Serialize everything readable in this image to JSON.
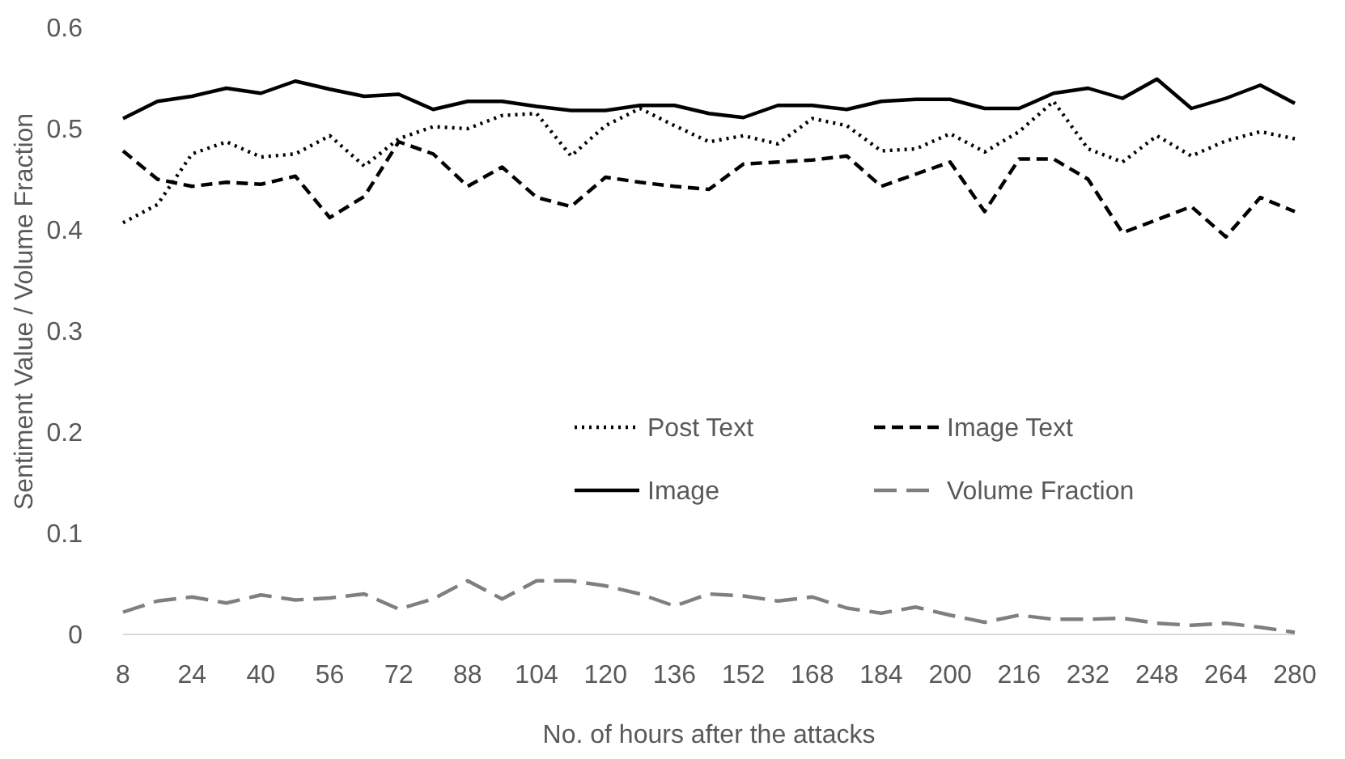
{
  "chart_data": {
    "type": "line",
    "xlabel": "No. of hours after the attacks",
    "ylabel": "Sentiment Value / Volume Fraction",
    "x": [
      8,
      16,
      24,
      32,
      40,
      48,
      56,
      64,
      72,
      80,
      88,
      96,
      104,
      112,
      120,
      128,
      136,
      144,
      152,
      160,
      168,
      176,
      184,
      192,
      200,
      208,
      216,
      224,
      232,
      240,
      248,
      256,
      264,
      272,
      280
    ],
    "xlim": [
      8,
      280
    ],
    "xticks": [
      8,
      24,
      40,
      56,
      72,
      88,
      104,
      120,
      136,
      152,
      168,
      184,
      200,
      216,
      232,
      248,
      264,
      280
    ],
    "ylim": [
      0,
      0.6
    ],
    "yticks": [
      {
        "value": 0,
        "label": "0"
      },
      {
        "value": 0.1,
        "label": "0.1"
      },
      {
        "value": 0.2,
        "label": "0.2"
      },
      {
        "value": 0.3,
        "label": "0.3"
      },
      {
        "value": 0.4,
        "label": "0.4"
      },
      {
        "value": 0.5,
        "label": "0.5"
      },
      {
        "value": 0.6,
        "label": "0.6"
      }
    ],
    "grid": false,
    "legend": "right",
    "marker": "none",
    "series": [
      {
        "name": "Post Text",
        "color": "#000000",
        "line_style": "dotted",
        "values": [
          0.407,
          0.425,
          0.475,
          0.487,
          0.472,
          0.475,
          0.493,
          0.463,
          0.49,
          0.502,
          0.5,
          0.513,
          0.515,
          0.473,
          0.503,
          0.52,
          0.503,
          0.487,
          0.493,
          0.485,
          0.51,
          0.503,
          0.478,
          0.48,
          0.495,
          0.477,
          0.497,
          0.527,
          0.48,
          0.467,
          0.493,
          0.473,
          0.488,
          0.497,
          0.49
        ]
      },
      {
        "name": "Image Text",
        "color": "#000000",
        "line_style": "dashed",
        "values": [
          0.478,
          0.45,
          0.443,
          0.447,
          0.445,
          0.453,
          0.412,
          0.433,
          0.487,
          0.475,
          0.443,
          0.462,
          0.432,
          0.423,
          0.452,
          0.447,
          0.443,
          0.44,
          0.465,
          0.467,
          0.469,
          0.473,
          0.443,
          0.455,
          0.467,
          0.418,
          0.47,
          0.47,
          0.45,
          0.397,
          0.41,
          0.423,
          0.393,
          0.432,
          0.418
        ]
      },
      {
        "name": "Image",
        "color": "#000000",
        "line_style": "solid",
        "values": [
          0.51,
          0.527,
          0.532,
          0.54,
          0.535,
          0.547,
          0.539,
          0.532,
          0.534,
          0.519,
          0.527,
          0.527,
          0.522,
          0.518,
          0.518,
          0.523,
          0.523,
          0.515,
          0.511,
          0.523,
          0.523,
          0.519,
          0.527,
          0.529,
          0.529,
          0.52,
          0.52,
          0.535,
          0.54,
          0.53,
          0.549,
          0.52,
          0.53,
          0.543,
          0.525
        ]
      },
      {
        "name": "Volume Fraction",
        "color": "#7f7f7f",
        "line_style": "longdash",
        "values": [
          0.022,
          0.033,
          0.037,
          0.031,
          0.039,
          0.034,
          0.036,
          0.04,
          0.025,
          0.035,
          0.053,
          0.035,
          0.053,
          0.053,
          0.048,
          0.04,
          0.028,
          0.04,
          0.038,
          0.033,
          0.037,
          0.026,
          0.021,
          0.027,
          0.019,
          0.012,
          0.019,
          0.015,
          0.015,
          0.016,
          0.011,
          0.009,
          0.011,
          0.007,
          0.002
        ]
      }
    ]
  }
}
